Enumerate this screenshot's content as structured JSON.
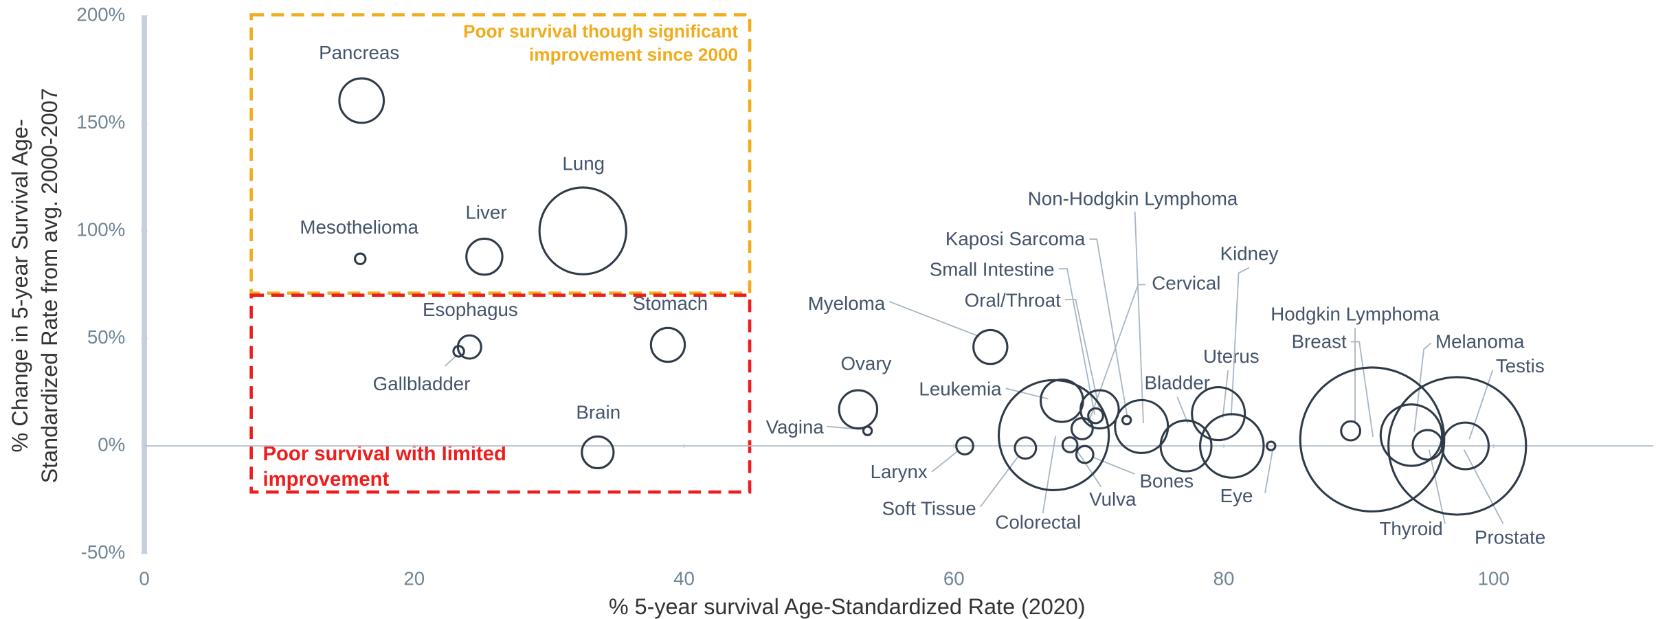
{
  "chart_data": {
    "type": "bubble",
    "xlabel": "% 5-year survival Age-Standardized Rate (2020)",
    "ylabel": [
      "% Change in 5-year Survival Age-",
      "Standardized Rate from avg. 2000-2007"
    ],
    "annotations": [
      {
        "text": [
          "Poor survival though significant",
          "improvement since 2000"
        ],
        "color": "#f0ac1c"
      },
      {
        "text": [
          "Poor survival with limited",
          "improvement"
        ],
        "color": "#ee1c1c"
      }
    ],
    "labels": [
      "Pancreas",
      "Mesothelioma",
      "Liver",
      "Lung",
      "Esophagus",
      "Gallbladder",
      "Stomach",
      "Brain",
      "Myeloma",
      "Ovary",
      "Vagina",
      "Larynx",
      "Soft Tissue",
      "Colorectal",
      "Leukemia",
      "Oral/Throat",
      "Small Intestine",
      "Vulva",
      "Bones",
      "Kaposi Sarcoma",
      "Non-Hodgkin Lymphoma",
      "Cervical",
      "Bladder",
      "Uterus",
      "Kidney",
      "Eye",
      "Hodgkin Lymphoma",
      "Breast",
      "Melanoma",
      "Thyroid",
      "Prostate",
      "Testis"
    ],
    "x": [
      16.1,
      16.0,
      25.2,
      32.5,
      24.1,
      23.3,
      38.8,
      33.6,
      62.7,
      52.9,
      53.6,
      60.8,
      65.3,
      67.4,
      68.0,
      70.8,
      70.5,
      68.6,
      69.7,
      72.8,
      73.9,
      69.5,
      77.2,
      79.6,
      80.6,
      83.5,
      89.4,
      91.0,
      93.9,
      95.1,
      97.3,
      97.9
    ],
    "values": [
      160.6,
      87,
      88,
      100,
      46,
      44,
      47,
      -3,
      46,
      17,
      7,
      0,
      -1,
      5,
      21,
      17,
      14,
      0.5,
      -4,
      12,
      9,
      8,
      0,
      15,
      0,
      0,
      7,
      3,
      5,
      0.5,
      0,
      0
    ],
    "sizes": [
      441,
      25,
      289,
      1681,
      121,
      25,
      256,
      225,
      256,
      324,
      16,
      64,
      100,
      2704,
      400,
      324,
      49,
      49,
      64,
      16,
      625,
      100,
      576,
      625,
      900,
      16,
      81,
      4624,
      841,
      196,
      4225,
      484
    ],
    "color": "#2f3b49",
    "xlim": [
      0,
      112
    ],
    "xticks": [
      0,
      20,
      40,
      60,
      80,
      100
    ],
    "ylim": [
      -50,
      200
    ],
    "yticks": [
      {
        "value": -50,
        "label": "-50%"
      },
      {
        "value": 0,
        "label": "0%"
      },
      {
        "value": 50,
        "label": "50%"
      },
      {
        "value": 100,
        "label": "100%"
      },
      {
        "value": 150,
        "label": "150%"
      },
      {
        "value": 200,
        "label": "200%"
      }
    ]
  }
}
